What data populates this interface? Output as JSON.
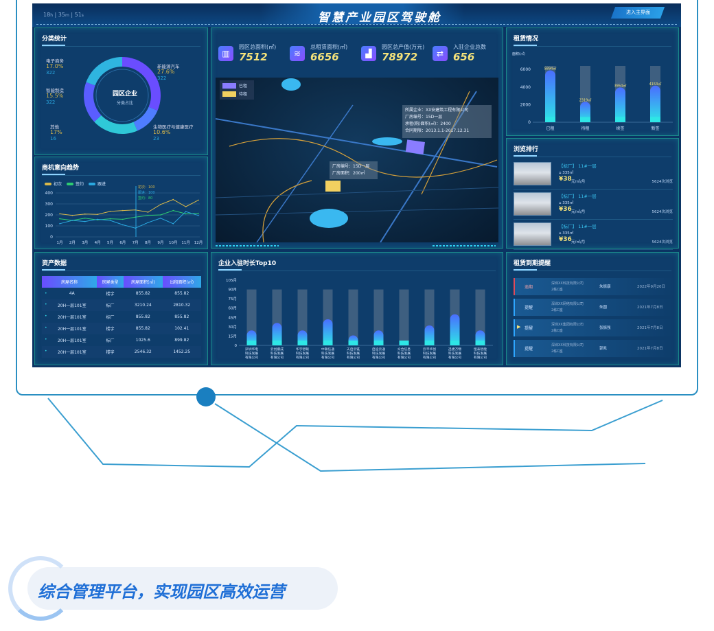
{
  "header": {
    "title": "智慧产业园区驾驶舱",
    "timer": {
      "h": "18",
      "h_unit": "h",
      "m": "35",
      "m_unit": "m",
      "s": "51",
      "s_unit": "s"
    },
    "enter_button": "进入主界面"
  },
  "category": {
    "title": "分类统计",
    "center_title": "园区企业",
    "center_sub": "分类占比",
    "slices": [
      {
        "name": "新能源汽车",
        "pct": "27.6%",
        "count": "322",
        "value": 27.6,
        "color": "#6a4dff"
      },
      {
        "name": "生物医疗与健康医疗",
        "pct": "10.6%",
        "count": "23",
        "value": 10.6,
        "color": "#4f7dff"
      },
      {
        "name": "其他",
        "pct": "17%",
        "count": "16",
        "value": 17,
        "color": "#2fc8d8"
      },
      {
        "name": "智能制造",
        "pct": "15.5%",
        "count": "322",
        "value": 15.5,
        "color": "#5a5dff"
      },
      {
        "name": "电子商务",
        "pct": "17.0%",
        "count": "322",
        "value": 17,
        "color": "#2fb5e0"
      }
    ]
  },
  "trend": {
    "title": "商机意向趋势",
    "legend": [
      "初次",
      "签约",
      "跟进"
    ],
    "colors": [
      "#d9b84a",
      "#2ecc71",
      "#2aa8e0"
    ],
    "tooltip": [
      "初次：100",
      "跟进：100",
      "签约：80"
    ],
    "chart_data": {
      "type": "line",
      "categories": [
        "1月",
        "2月",
        "3月",
        "4月",
        "5月",
        "6月",
        "7月",
        "8月",
        "9月",
        "10月",
        "11月",
        "12月"
      ],
      "ylim": [
        0,
        400
      ],
      "yticks": [
        0,
        100,
        200,
        300,
        400
      ],
      "series": [
        {
          "name": "初次",
          "values": [
            210,
            195,
            208,
            205,
            232,
            240,
            245,
            225,
            295,
            340,
            275,
            335
          ]
        },
        {
          "name": "签约",
          "values": [
            165,
            150,
            170,
            155,
            165,
            160,
            180,
            195,
            200,
            240,
            210,
            215
          ]
        },
        {
          "name": "跟进",
          "values": [
            120,
            150,
            140,
            160,
            150,
            110,
            80,
            130,
            170,
            120,
            230,
            195
          ]
        }
      ]
    }
  },
  "assets": {
    "title": "资产数据",
    "headers": [
      "房屋名称",
      "房屋类型",
      "房屋面积(㎡)",
      "出租面积(㎡)"
    ],
    "rows": [
      [
        "4A",
        "楼宇",
        "855.82",
        "855.82"
      ],
      [
        "20H一层101室",
        "标厂",
        "3210.24",
        "2810.32"
      ],
      [
        "20H一层101室",
        "标厂",
        "855.82",
        "855.82"
      ],
      [
        "20H一层101室",
        "楼宇",
        "855.82",
        "102.41"
      ],
      [
        "20H一层101室",
        "标厂",
        "1025.6",
        "899.82"
      ],
      [
        "20H一层101室",
        "楼宇",
        "2546.32",
        "1452.25"
      ]
    ]
  },
  "stats": [
    {
      "label": "园区总面积(㎡)",
      "value": "7512",
      "icon": "building-icon"
    },
    {
      "label": "总租赁面积(㎡)",
      "value": "6656",
      "icon": "layers-icon"
    },
    {
      "label": "园区总产值(万元)",
      "value": "78972",
      "icon": "chart-icon"
    },
    {
      "label": "入驻企业总数",
      "value": "656",
      "icon": "handshake-icon"
    }
  ],
  "map": {
    "legend": [
      "已租",
      "待租"
    ],
    "legend_colors": [
      "#8a7dff",
      "#f2d060"
    ],
    "popup1": [
      "所属企业：XX安建筑工程有限公司",
      "厂房编号：15D一层",
      "承租(购)面积(㎡)：2400",
      "合同期限：2013.1.1-2017.12.31"
    ],
    "popup2": [
      "厂房编号：15D一层",
      "厂房面积：200㎡"
    ]
  },
  "top10": {
    "title": "企业入驻时长Top10",
    "chart_data": {
      "type": "bar",
      "ylim": [
        0,
        105
      ],
      "yticks": [
        "0",
        "15月",
        "30月",
        "45月",
        "60月",
        "75月",
        "90月",
        "105月"
      ],
      "background_max": 90,
      "categories": [
        "深圳华电科技发展有限公司",
        "云创睿成科技发展有限公司",
        "华宇智联科技发展有限公司",
        "中联信通科技发展有限公司",
        "天启云链科技发展有限公司",
        "启迪云通科技发展有限公司",
        "众合信息科技发展有限公司",
        "云丰华创科技发展有限公司",
        "迅捷万物科技发展有限公司",
        "恒泰智能科技发展有限公司"
      ],
      "values": [
        24,
        36,
        24,
        42,
        16,
        24,
        4,
        32,
        50,
        24
      ]
    }
  },
  "rental": {
    "title": "租赁情况",
    "ylabel": "面积(㎡)",
    "chart_data": {
      "type": "bar",
      "categories": [
        "已租",
        "待租",
        "续签",
        "新签"
      ],
      "values": [
        5894,
        2319,
        3954,
        4153
      ],
      "labels": [
        "5894㎡",
        "2319㎡",
        "3954㎡",
        "4153㎡"
      ],
      "ylim": [
        0,
        6400
      ],
      "yticks": [
        "0",
        "2000",
        "4000",
        "6000"
      ]
    }
  },
  "browse": {
    "title": "浏览排行",
    "items": [
      {
        "name": "【标厂】 11#一层",
        "area": "335㎡",
        "price": "¥38",
        "unit": "元/㎡/月",
        "views": "5624次浏览"
      },
      {
        "name": "【标厂】 11#一层",
        "area": "335㎡",
        "price": "¥36",
        "unit": "元/㎡/月",
        "views": "5624次浏览"
      },
      {
        "name": "【标厂】 11#一层",
        "area": "335㎡",
        "price": "¥36",
        "unit": "元/㎡/月",
        "views": "5624次浏览"
      }
    ]
  },
  "expiry": {
    "title": "租赁到期提醒",
    "rows": [
      {
        "status": "逾期",
        "company": "深圳XX科技有限公司",
        "loc": "2栋C座",
        "person": "朱振康",
        "date": "2022年9月20日",
        "color": "#e04a5a"
      },
      {
        "status": "提醒",
        "company": "深圳XX网络有限公司",
        "loc": "2栋C座",
        "person": "朱圆",
        "date": "2021年7月8日",
        "color": "#2ea6ff"
      },
      {
        "status": "提醒",
        "company": "深圳XX集团有限公司",
        "loc": "2栋C座",
        "person": "张振强",
        "date": "2021年7月8日",
        "color": "#2ea6ff"
      },
      {
        "status": "提醒",
        "company": "深圳XX科技有限公司",
        "loc": "2栋C座",
        "person": "郭凯",
        "date": "2021年7月8日",
        "color": "#2ea6ff"
      }
    ]
  },
  "banner": {
    "text": "综合管理平台，实现园区高效运营"
  }
}
